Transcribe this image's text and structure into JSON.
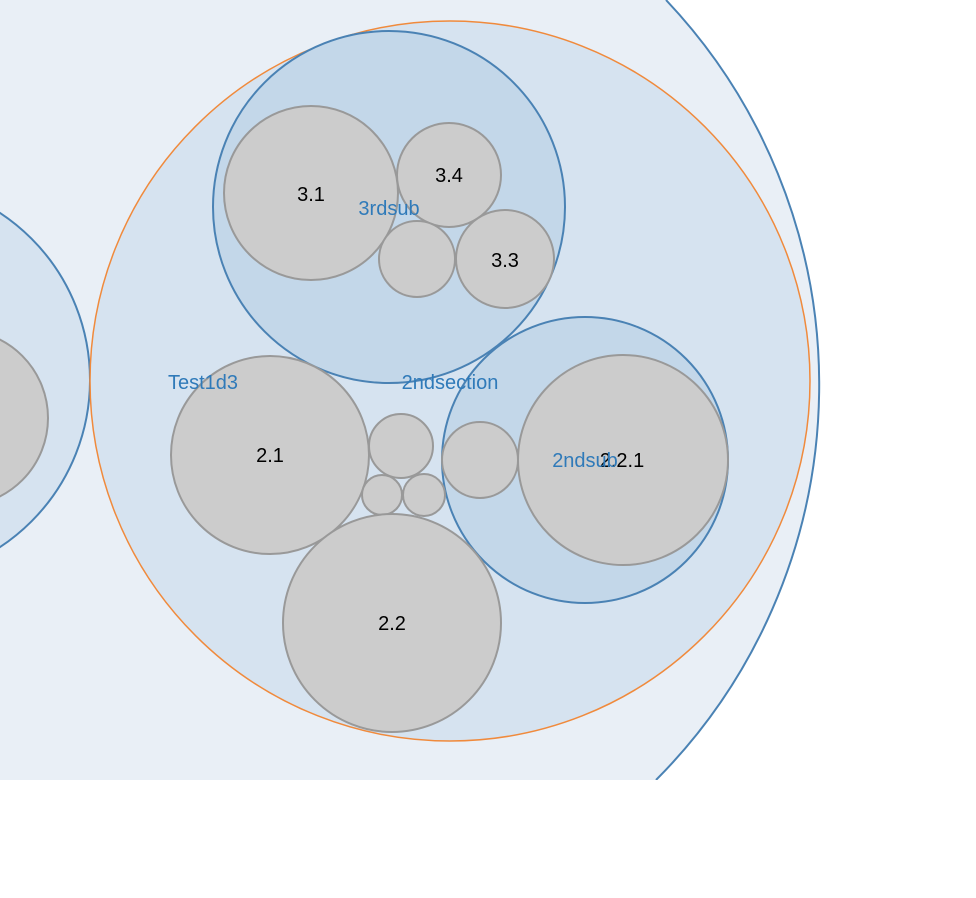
{
  "colors": {
    "root_fill": "#e9eff6",
    "group_fill": "#d6e3f0",
    "sub_fill": "#c3d7e9",
    "group_stroke": "#4a82b4",
    "highlight_stroke": "#f08a3c",
    "leaf_fill": "#cccccc",
    "leaf_stroke": "#999999",
    "group_label": "#2f7ab9",
    "leaf_label": "#000000"
  },
  "labels": {
    "test1d3": "Test1d3",
    "second_section": "2ndsection",
    "third_sub": "3rdsub",
    "second_sub": "2ndsub",
    "leaf_3_1": "3.1",
    "leaf_3_4": "3.4",
    "leaf_3_3": "3.3",
    "leaf_2_1": "2.1",
    "leaf_2_2": "2.2",
    "leaf_2_2_1": "2.2.1"
  }
}
